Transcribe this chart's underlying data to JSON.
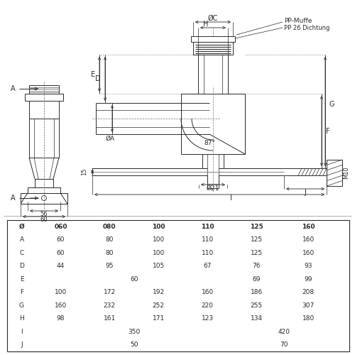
{
  "bg_color": "#ffffff",
  "line_color": "#2a2a2a",
  "table_header_row": [
    "Ø",
    "060",
    "080",
    "100",
    "110",
    "125",
    "160"
  ],
  "table_rows": [
    [
      "A",
      "60",
      "80",
      "100",
      "110",
      "125",
      "160"
    ],
    [
      "C",
      "60",
      "80",
      "100",
      "110",
      "125",
      "160"
    ],
    [
      "D",
      "44",
      "95",
      "105",
      "67",
      "76",
      "93"
    ],
    [
      "E",
      "60",
      "",
      "",
      "",
      "69",
      "99"
    ],
    [
      "F",
      "100",
      "172",
      "192",
      "160",
      "186",
      "208"
    ],
    [
      "G",
      "160",
      "232",
      "252",
      "220",
      "255",
      "307"
    ],
    [
      "H",
      "98",
      "161",
      "171",
      "123",
      "134",
      "180"
    ],
    [
      "I",
      "350",
      "",
      "",
      "",
      "420",
      ""
    ],
    [
      "J",
      "50",
      "",
      "",
      "",
      "70",
      ""
    ]
  ]
}
